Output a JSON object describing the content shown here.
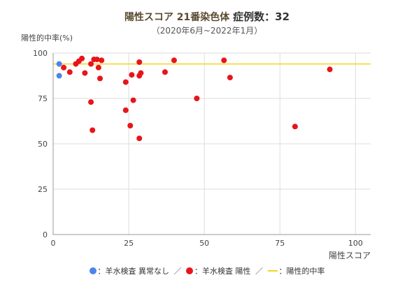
{
  "title_main": "陽性スコア 21番染色体 ",
  "title_count": "症例数：32",
  "subtitle": "（2020年6月~2022年1月）",
  "legend": {
    "normal": "：羊水検査 異常なし",
    "positive": "：羊水検査 陽性",
    "ppv": "：陽性的中率",
    "separator": "／"
  },
  "colors": {
    "normal": "#4a86e8",
    "positive": "#e8141b",
    "ppv_line": "#f2d51f",
    "grid": "#dddddd",
    "axis": "#999999"
  },
  "chart_data": {
    "type": "scatter",
    "xlabel": "陽性スコア",
    "ylabel": "陽性的中率(%)",
    "xlim": [
      0,
      105
    ],
    "ylim": [
      0,
      100
    ],
    "xticks": [
      0,
      25,
      50,
      75,
      100
    ],
    "yticks": [
      0,
      25,
      50,
      75,
      100
    ],
    "grid": true,
    "reference_line": {
      "y": 94,
      "name": "陽性的中率"
    },
    "series": [
      {
        "name": "羊水検査 異常なし",
        "color": "#4a86e8",
        "points": [
          [
            2,
            94
          ],
          [
            2,
            87.5
          ]
        ]
      },
      {
        "name": "羊水検査 陽性",
        "color": "#e8141b",
        "points": [
          [
            3.5,
            92
          ],
          [
            5.5,
            89.5
          ],
          [
            7.5,
            94
          ],
          [
            8.5,
            95.5
          ],
          [
            9.5,
            97
          ],
          [
            10.5,
            89
          ],
          [
            12.5,
            94
          ],
          [
            13.5,
            96.5
          ],
          [
            14.5,
            96.5
          ],
          [
            15,
            92
          ],
          [
            15.5,
            86
          ],
          [
            16,
            96
          ],
          [
            12.5,
            73
          ],
          [
            13,
            57.5
          ],
          [
            24,
            84
          ],
          [
            24,
            68.5
          ],
          [
            25.5,
            60
          ],
          [
            26,
            88
          ],
          [
            26.5,
            74
          ],
          [
            28.5,
            87.5
          ],
          [
            28.5,
            53
          ],
          [
            28.5,
            95
          ],
          [
            29,
            89
          ],
          [
            37,
            89.5
          ],
          [
            40,
            96
          ],
          [
            47.5,
            75
          ],
          [
            56.5,
            96
          ],
          [
            58.5,
            86.5
          ],
          [
            80,
            59.5
          ],
          [
            91.5,
            91
          ]
        ]
      }
    ]
  }
}
